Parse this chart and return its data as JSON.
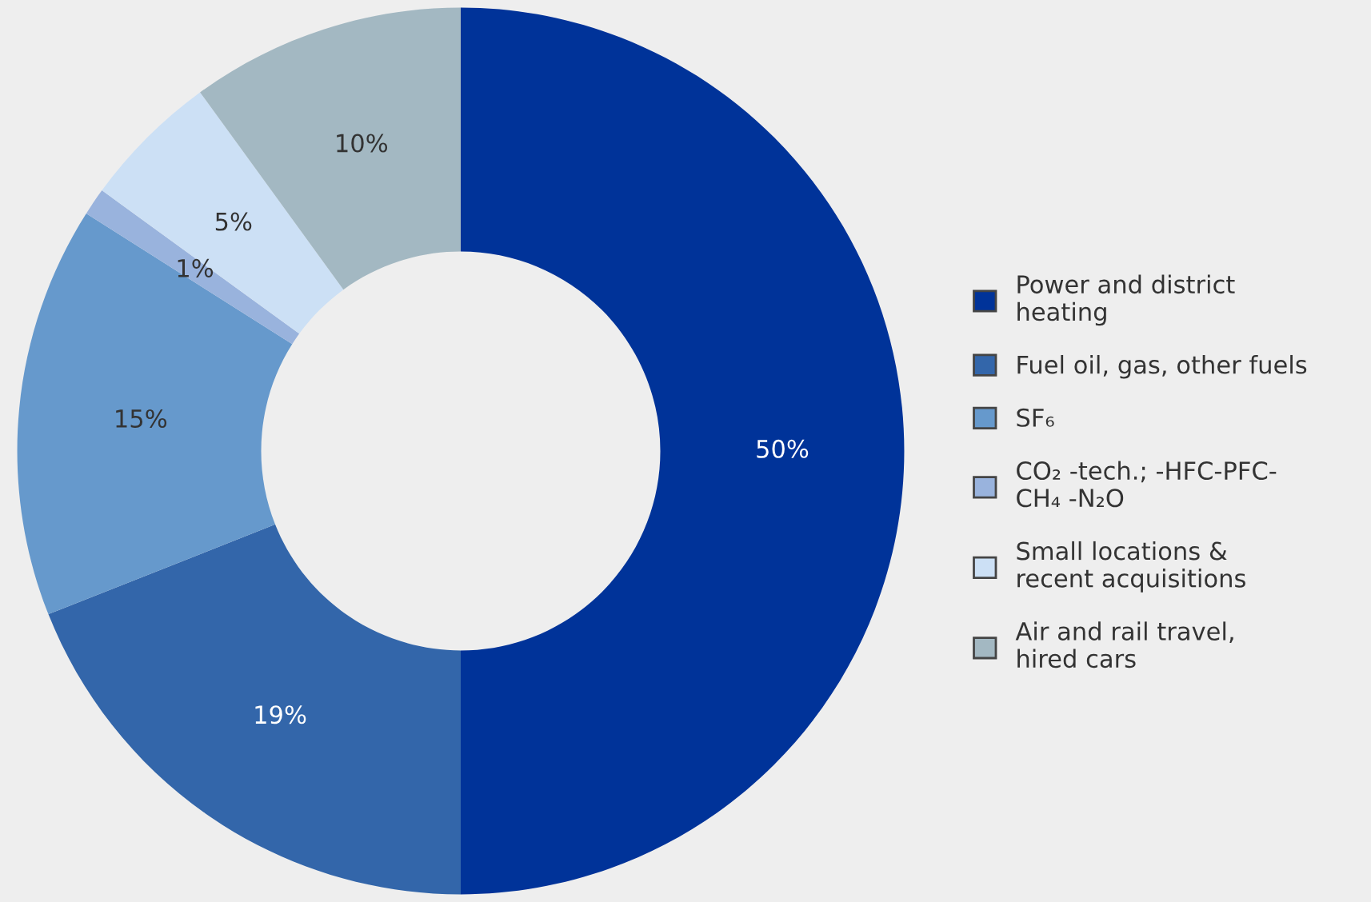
{
  "chart_data": {
    "type": "donut",
    "categories": [
      "Power and district\nheating",
      "Fuel oil, gas, other fuels",
      "SF₆",
      "CO₂ -tech.; -HFC-PFC-\nCH₄ -N₂O",
      "Small locations &\nrecent acquisitions",
      "Air and rail travel,\nhired cars"
    ],
    "values": [
      50,
      19,
      15,
      1,
      5,
      10
    ],
    "colors": [
      "#003399",
      "#3366aa",
      "#6699cc",
      "#99b3dd",
      "#cce0f5",
      "#a3b8c2"
    ],
    "value_labels": [
      "50%",
      "19%",
      "15%",
      "1%",
      "5%",
      "10%"
    ],
    "legend": "right"
  }
}
